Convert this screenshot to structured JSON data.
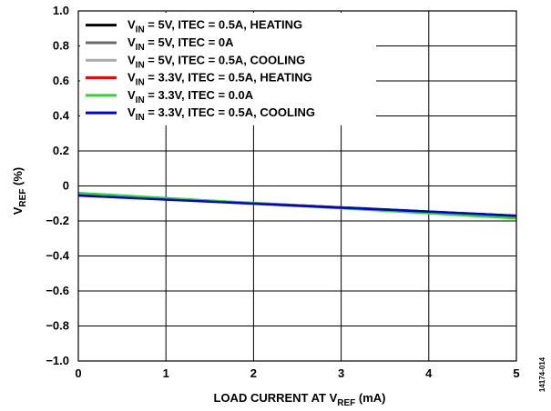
{
  "chart_data": {
    "type": "line",
    "xlabel": "LOAD CURRENT AT V",
    "xlabel_sub": "REF",
    "xlabel_tail": " (mA)",
    "ylabel": "V",
    "ylabel_sub": "REF",
    "ylabel_tail": " (%)",
    "xlim": [
      0,
      5
    ],
    "ylim": [
      -1.0,
      1.0
    ],
    "x_ticks": [
      "0",
      "1",
      "2",
      "3",
      "4",
      "5"
    ],
    "y_ticks": [
      "1.0",
      "0.8",
      "0.6",
      "0.4",
      "0.2",
      "0",
      "−0.2",
      "−0.4",
      "−0.6",
      "−0.8",
      "−1.0"
    ],
    "grid": true,
    "legend_position": "top-left",
    "figure_id": "14174-014",
    "series": [
      {
        "prefix": "V",
        "sub": "IN",
        "text": " = 5V, ITEC = 0.5A, HEATING",
        "color": "#000000",
        "x": [
          0,
          5
        ],
        "y": [
          -0.05,
          -0.17
        ]
      },
      {
        "prefix": "V",
        "sub": "IN",
        "text": " = 5V, ITEC = 0A",
        "color": "#6b6b6b",
        "x": [
          0,
          5
        ],
        "y": [
          -0.045,
          -0.175
        ]
      },
      {
        "prefix": "V",
        "sub": "IN",
        "text": " = 5V, ITEC = 0.5A, COOLING",
        "color": "#a9a9a9",
        "x": [
          0,
          5
        ],
        "y": [
          -0.05,
          -0.18
        ]
      },
      {
        "prefix": "V",
        "sub": "IN",
        "text": " = 3.3V, ITEC = 0.5A, HEATING",
        "color": "#ff0000",
        "x": [
          0,
          5
        ],
        "y": [
          -0.05,
          -0.175
        ]
      },
      {
        "prefix": "V",
        "sub": "IN",
        "text": " = 3.3V, ITEC = 0.0A",
        "color": "#22dd22",
        "x": [
          0,
          5
        ],
        "y": [
          -0.04,
          -0.185
        ]
      },
      {
        "prefix": "V",
        "sub": "IN",
        "text": " = 3.3V, ITEC = 0.5A, COOLING",
        "color": "#0000dd",
        "x": [
          0,
          5
        ],
        "y": [
          -0.055,
          -0.17
        ]
      }
    ]
  }
}
